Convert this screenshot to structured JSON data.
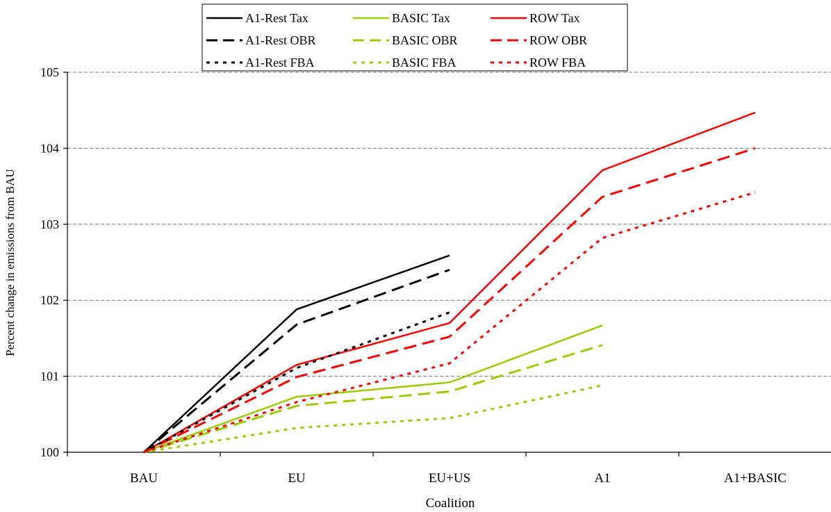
{
  "chart_data": {
    "type": "line",
    "xlabel": "Coalition",
    "ylabel": "Percent change in emissions from BAU",
    "categories": [
      "BAU",
      "EU",
      "EU+US",
      "A1",
      "A1+BASIC"
    ],
    "ylim": [
      100,
      105
    ],
    "yticks": [
      100,
      101,
      102,
      103,
      104,
      105
    ],
    "grid": "horizontal dashed",
    "legend_position": "top",
    "series": [
      {
        "name": "A1-Rest Tax",
        "color": "#000000",
        "dash": "solid",
        "values": [
          100,
          101.88,
          102.59,
          null,
          null
        ]
      },
      {
        "name": "BASIC Tax",
        "color": "#99cc00",
        "dash": "solid",
        "values": [
          100,
          100.73,
          100.92,
          101.67,
          null
        ]
      },
      {
        "name": "ROW Tax",
        "color": "#ff0000",
        "dash": "solid",
        "values": [
          100,
          101.15,
          101.7,
          103.71,
          104.47
        ]
      },
      {
        "name": "A1-Rest OBR",
        "color": "#000000",
        "dash": "dashed",
        "values": [
          100,
          101.68,
          102.4,
          null,
          null
        ]
      },
      {
        "name": "BASIC OBR",
        "color": "#99cc00",
        "dash": "dashed",
        "values": [
          100,
          100.61,
          100.8,
          101.41,
          null
        ]
      },
      {
        "name": "ROW OBR",
        "color": "#ff0000",
        "dash": "dashed",
        "values": [
          100,
          100.99,
          101.52,
          103.36,
          104.0
        ]
      },
      {
        "name": "A1-Rest FBA",
        "color": "#000000",
        "dash": "dotted",
        "values": [
          100,
          101.11,
          101.84,
          null,
          null
        ]
      },
      {
        "name": "BASIC FBA",
        "color": "#99cc00",
        "dash": "dotted",
        "values": [
          100,
          100.32,
          100.45,
          100.88,
          null
        ]
      },
      {
        "name": "ROW FBA",
        "color": "#ff0000",
        "dash": "dotted",
        "values": [
          100,
          100.66,
          101.17,
          102.82,
          103.42
        ]
      }
    ]
  }
}
